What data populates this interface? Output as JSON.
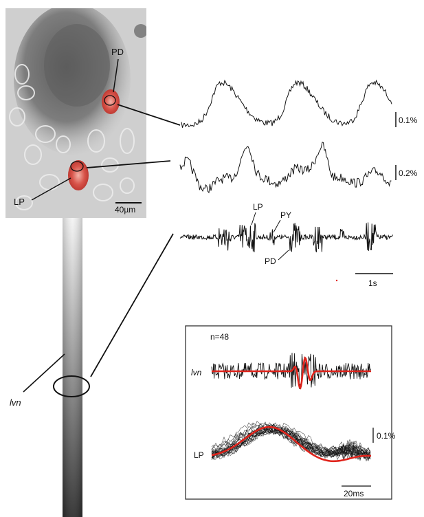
{
  "image_panel": {
    "neuron_labels": {
      "pd": "PD",
      "lp": "LP"
    },
    "scale_bar_label": "40µm"
  },
  "nerve": {
    "label": "lvn"
  },
  "traces": {
    "pd_scale_label": "0.1%",
    "lp_scale_label": "0.2%",
    "extracellular_labels": {
      "lp": "LP",
      "py": "PY",
      "pd": "PD"
    },
    "time_scale_label": "1s"
  },
  "inset": {
    "count_label": "n=48",
    "lvn_label": "lvn",
    "lp_label": "LP",
    "amplitude_scale_label": "0.1%",
    "time_scale_label": "20ms",
    "colors": {
      "average_trace": "#e0231b",
      "raw_traces": "#111111"
    }
  }
}
